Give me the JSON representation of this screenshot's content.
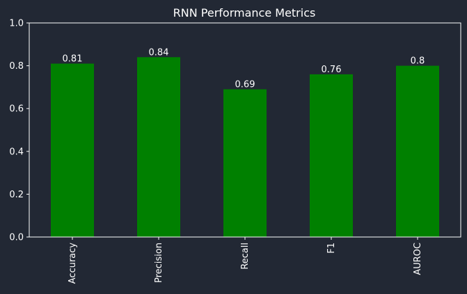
{
  "chart_data": {
    "type": "bar",
    "title": "RNN Performance Metrics",
    "xlabel": "",
    "ylabel": "",
    "categories": [
      "Accuracy",
      "Precision",
      "Recall",
      "F1",
      "AUROC"
    ],
    "values": [
      0.81,
      0.84,
      0.69,
      0.76,
      0.8
    ],
    "value_labels": [
      "0.81",
      "0.84",
      "0.69",
      "0.76",
      "0.8"
    ],
    "ylim": [
      0.0,
      1.0
    ],
    "yticks": [
      0.0,
      0.2,
      0.4,
      0.6,
      0.8,
      1.0
    ],
    "ytick_labels": [
      "0.0",
      "0.2",
      "0.4",
      "0.6",
      "0.8",
      "1.0"
    ],
    "grid": false,
    "colors": {
      "bar": "#008000",
      "background": "#222834",
      "text": "#ffffff",
      "axis": "#ffffff"
    }
  }
}
